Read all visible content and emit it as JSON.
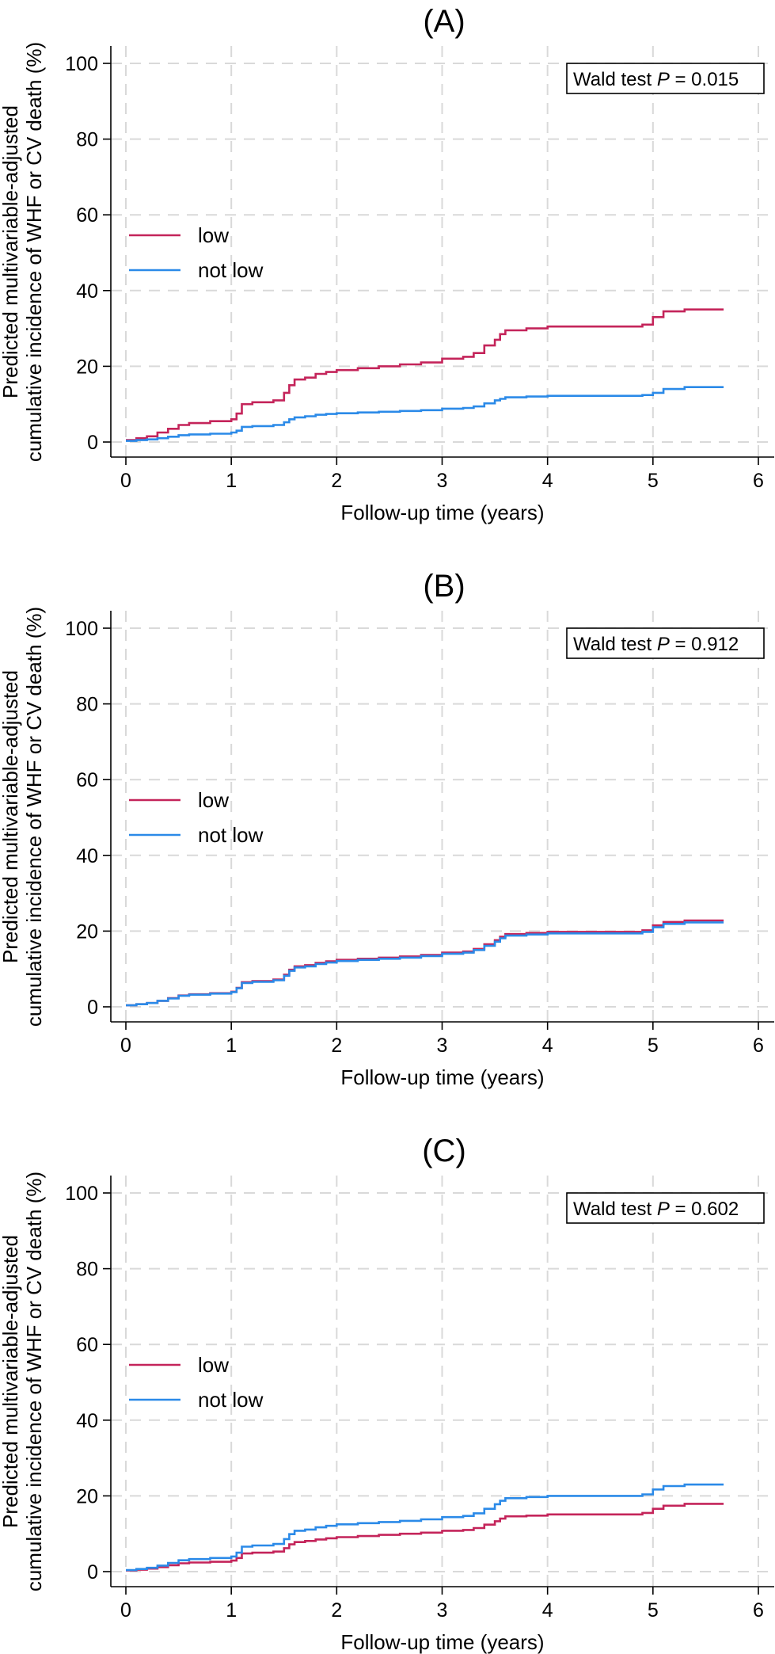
{
  "chart_data": [
    {
      "type": "line",
      "panel_title": "(A)",
      "xlabel": "Follow-up time (years)",
      "ylabel": "Predicted multivariable-adjusted cumulative incidence of WHF or CV death (%)",
      "xlim": [
        0,
        6
      ],
      "ylim": [
        0,
        100
      ],
      "x_ticks": [
        0,
        1,
        2,
        3,
        4,
        5,
        6
      ],
      "y_ticks": [
        0,
        20,
        40,
        60,
        80,
        100
      ],
      "grid": true,
      "legend_position": "middle-left",
      "annotation": {
        "prefix": "Wald test ",
        "italic": "P",
        "suffix": " = 0.015"
      },
      "series": [
        {
          "name": "low",
          "color": "#c4245a",
          "x": [
            0,
            0.1,
            0.2,
            0.3,
            0.4,
            0.5,
            0.6,
            0.8,
            1.0,
            1.05,
            1.1,
            1.2,
            1.4,
            1.5,
            1.55,
            1.6,
            1.7,
            1.8,
            1.9,
            2.0,
            2.2,
            2.4,
            2.6,
            2.8,
            3.0,
            3.2,
            3.3,
            3.4,
            3.5,
            3.55,
            3.6,
            3.8,
            4.0,
            4.5,
            4.9,
            5.0,
            5.1,
            5.3,
            5.67
          ],
          "y": [
            0.5,
            1,
            1.5,
            2.5,
            3.5,
            4.5,
            5,
            5.5,
            6,
            7.5,
            10,
            10.5,
            11,
            13,
            15,
            16.5,
            17,
            18,
            18.5,
            19,
            19.5,
            20,
            20.5,
            21,
            22,
            22.5,
            23.5,
            25.5,
            27,
            28.5,
            29.5,
            30,
            30.5,
            30.5,
            31,
            33,
            34.5,
            35,
            35
          ]
        },
        {
          "name": "not low",
          "color": "#2b8ae8",
          "x": [
            0,
            0.1,
            0.2,
            0.3,
            0.4,
            0.5,
            0.6,
            0.8,
            1.0,
            1.05,
            1.1,
            1.2,
            1.4,
            1.5,
            1.55,
            1.6,
            1.7,
            1.8,
            1.9,
            2.0,
            2.2,
            2.4,
            2.6,
            2.8,
            3.0,
            3.2,
            3.3,
            3.4,
            3.5,
            3.55,
            3.6,
            3.8,
            4.0,
            4.5,
            4.9,
            5.0,
            5.1,
            5.3,
            5.67
          ],
          "y": [
            0.3,
            0.5,
            0.7,
            1,
            1.4,
            1.8,
            2,
            2.2,
            2.5,
            3,
            4,
            4.2,
            4.5,
            5.2,
            6,
            6.5,
            6.8,
            7.2,
            7.4,
            7.6,
            7.8,
            8,
            8.2,
            8.4,
            8.8,
            9,
            9.4,
            10.2,
            11,
            11.4,
            11.8,
            12,
            12.2,
            12.2,
            12.4,
            13,
            14,
            14.5,
            14.5
          ]
        }
      ]
    },
    {
      "type": "line",
      "panel_title": "(B)",
      "xlabel": "Follow-up time (years)",
      "ylabel": "Predicted multivariable-adjusted cumulative incidence of WHF or CV death (%)",
      "xlim": [
        0,
        6
      ],
      "ylim": [
        0,
        100
      ],
      "x_ticks": [
        0,
        1,
        2,
        3,
        4,
        5,
        6
      ],
      "y_ticks": [
        0,
        20,
        40,
        60,
        80,
        100
      ],
      "grid": true,
      "legend_position": "middle-left",
      "annotation": {
        "prefix": "Wald test ",
        "italic": "P",
        "suffix": " = 0.912"
      },
      "series": [
        {
          "name": "low",
          "color": "#c4245a",
          "x": [
            0,
            0.1,
            0.2,
            0.3,
            0.4,
            0.5,
            0.6,
            0.8,
            1.0,
            1.05,
            1.1,
            1.2,
            1.4,
            1.5,
            1.55,
            1.6,
            1.7,
            1.8,
            1.9,
            2.0,
            2.2,
            2.4,
            2.6,
            2.8,
            3.0,
            3.2,
            3.3,
            3.4,
            3.5,
            3.55,
            3.6,
            3.8,
            4.0,
            4.5,
            4.9,
            5.0,
            5.1,
            5.3,
            5.67
          ],
          "y": [
            0.4,
            0.7,
            1,
            1.6,
            2.3,
            3,
            3.3,
            3.6,
            4,
            5,
            6.5,
            6.8,
            7.2,
            8.5,
            9.8,
            10.7,
            11,
            11.6,
            12,
            12.4,
            12.7,
            13,
            13.3,
            13.7,
            14.3,
            14.6,
            15.3,
            16.5,
            17.6,
            18.5,
            19.2,
            19.5,
            19.8,
            19.8,
            20.2,
            21.5,
            22.4,
            22.8,
            22.8
          ]
        },
        {
          "name": "not low",
          "color": "#2b8ae8",
          "x": [
            0,
            0.1,
            0.2,
            0.3,
            0.4,
            0.5,
            0.6,
            0.8,
            1.0,
            1.05,
            1.1,
            1.2,
            1.4,
            1.5,
            1.55,
            1.6,
            1.7,
            1.8,
            1.9,
            2.0,
            2.2,
            2.4,
            2.6,
            2.8,
            3.0,
            3.2,
            3.3,
            3.4,
            3.5,
            3.55,
            3.6,
            3.8,
            4.0,
            4.5,
            4.9,
            5.0,
            5.1,
            5.3,
            5.67
          ],
          "y": [
            0.4,
            0.7,
            1,
            1.6,
            2.2,
            2.9,
            3.2,
            3.5,
            3.9,
            4.9,
            6.3,
            6.6,
            7,
            8.2,
            9.5,
            10.4,
            10.7,
            11.3,
            11.7,
            12.1,
            12.4,
            12.7,
            13,
            13.4,
            14,
            14.3,
            15,
            16.1,
            17.2,
            18.1,
            18.8,
            19.1,
            19.4,
            19.4,
            19.8,
            21,
            21.9,
            22.3,
            22.3
          ]
        }
      ]
    },
    {
      "type": "line",
      "panel_title": "(C)",
      "xlabel": "Follow-up time (years)",
      "ylabel": "Predicted multivariable-adjusted cumulative incidence of WHF or CV death (%)",
      "xlim": [
        0,
        6
      ],
      "ylim": [
        0,
        100
      ],
      "x_ticks": [
        0,
        1,
        2,
        3,
        4,
        5,
        6
      ],
      "y_ticks": [
        0,
        20,
        40,
        60,
        80,
        100
      ],
      "grid": true,
      "legend_position": "middle-left",
      "annotation": {
        "prefix": "Wald test ",
        "italic": "P",
        "suffix": " = 0.602"
      },
      "series": [
        {
          "name": "low",
          "color": "#c4245a",
          "x": [
            0,
            0.1,
            0.2,
            0.3,
            0.4,
            0.5,
            0.6,
            0.8,
            1.0,
            1.05,
            1.1,
            1.2,
            1.4,
            1.5,
            1.55,
            1.6,
            1.7,
            1.8,
            1.9,
            2.0,
            2.2,
            2.4,
            2.6,
            2.8,
            3.0,
            3.2,
            3.3,
            3.4,
            3.5,
            3.55,
            3.6,
            3.8,
            4.0,
            4.5,
            4.9,
            5.0,
            5.1,
            5.3,
            5.67
          ],
          "y": [
            0.3,
            0.5,
            0.8,
            1.2,
            1.7,
            2.2,
            2.4,
            2.6,
            2.9,
            3.6,
            4.8,
            5,
            5.3,
            6.2,
            7.2,
            7.8,
            8.1,
            8.5,
            8.8,
            9.1,
            9.4,
            9.7,
            10,
            10.3,
            10.8,
            11,
            11.5,
            12.4,
            13.3,
            14,
            14.6,
            14.8,
            15.1,
            15.1,
            15.5,
            16.6,
            17.4,
            17.9,
            17.9
          ]
        },
        {
          "name": "not low",
          "color": "#2b8ae8",
          "x": [
            0,
            0.1,
            0.2,
            0.3,
            0.4,
            0.5,
            0.6,
            0.8,
            1.0,
            1.05,
            1.1,
            1.2,
            1.4,
            1.5,
            1.55,
            1.6,
            1.7,
            1.8,
            1.9,
            2.0,
            2.2,
            2.4,
            2.6,
            2.8,
            3.0,
            3.2,
            3.3,
            3.4,
            3.5,
            3.55,
            3.6,
            3.8,
            4.0,
            4.5,
            4.9,
            5.0,
            5.1,
            5.3,
            5.67
          ],
          "y": [
            0.4,
            0.7,
            1,
            1.6,
            2.3,
            3,
            3.3,
            3.6,
            4,
            5,
            6.6,
            6.9,
            7.3,
            8.6,
            9.9,
            10.8,
            11.1,
            11.7,
            12.1,
            12.5,
            12.8,
            13.1,
            13.4,
            13.8,
            14.4,
            14.7,
            15.4,
            16.6,
            17.8,
            18.7,
            19.4,
            19.7,
            20,
            20,
            20.4,
            21.7,
            22.6,
            23,
            23
          ]
        }
      ]
    }
  ]
}
